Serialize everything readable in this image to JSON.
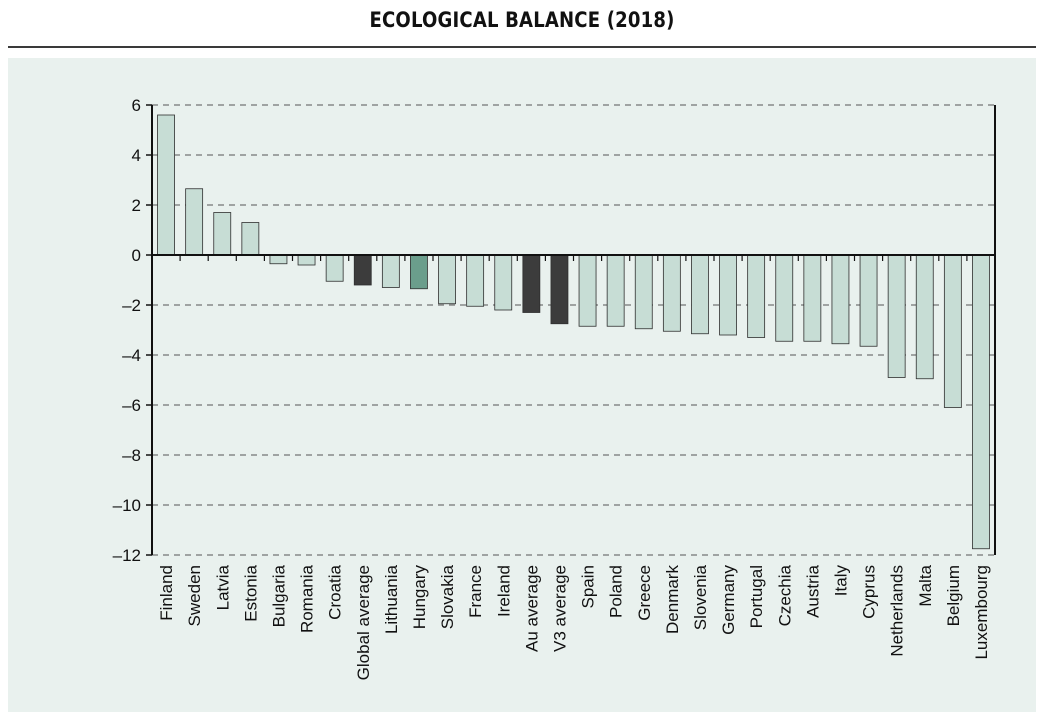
{
  "title": "ECOLOGICAL BALANCE (2018)",
  "colors": {
    "background": "#e9f1ee",
    "bar_default": "#c7ddd5",
    "bar_average": "#3c3c3c",
    "bar_highlight": "#6b9e8c",
    "grid": "#555555"
  },
  "chart_data": {
    "type": "bar",
    "categories": [
      "Finland",
      "Sweden",
      "Latvia",
      "Estonia",
      "Bulgaria",
      "Romania",
      "Croatia",
      "Global average",
      "Lithuania",
      "Hungary",
      "Slovakia",
      "France",
      "Ireland",
      "Au average",
      "V3 average",
      "Spain",
      "Poland",
      "Greece",
      "Denmark",
      "Slovenia",
      "Germany",
      "Portugal",
      "Czechia",
      "Austria",
      "Italy",
      "Cyprus",
      "Netherlands",
      "Malta",
      "Belgium",
      "Luxembourg"
    ],
    "values": [
      5.6,
      2.65,
      1.7,
      1.3,
      -0.35,
      -0.4,
      -1.05,
      -1.2,
      -1.3,
      -1.35,
      -1.95,
      -2.05,
      -2.2,
      -2.3,
      -2.75,
      -2.85,
      -2.85,
      -2.95,
      -3.05,
      -3.15,
      -3.2,
      -3.3,
      -3.45,
      -3.45,
      -3.55,
      -3.65,
      -4.9,
      -4.95,
      -6.1,
      -11.75
    ],
    "bar_styles": [
      "default",
      "default",
      "default",
      "default",
      "default",
      "default",
      "default",
      "average",
      "default",
      "highlight",
      "default",
      "default",
      "default",
      "average",
      "average",
      "default",
      "default",
      "default",
      "default",
      "default",
      "default",
      "default",
      "default",
      "default",
      "default",
      "default",
      "default",
      "default",
      "default",
      "default"
    ],
    "xlabel": "",
    "ylabel": "",
    "ylim": [
      -12,
      6
    ],
    "yticks": [
      6,
      4,
      2,
      0,
      -2,
      -4,
      -6,
      -8,
      -10,
      -12
    ],
    "ytick_labels": [
      "6",
      "4",
      "2",
      "0",
      "–2",
      "–4",
      "–6",
      "–8",
      "–10",
      "–12"
    ],
    "grid": true,
    "legend": "none"
  }
}
